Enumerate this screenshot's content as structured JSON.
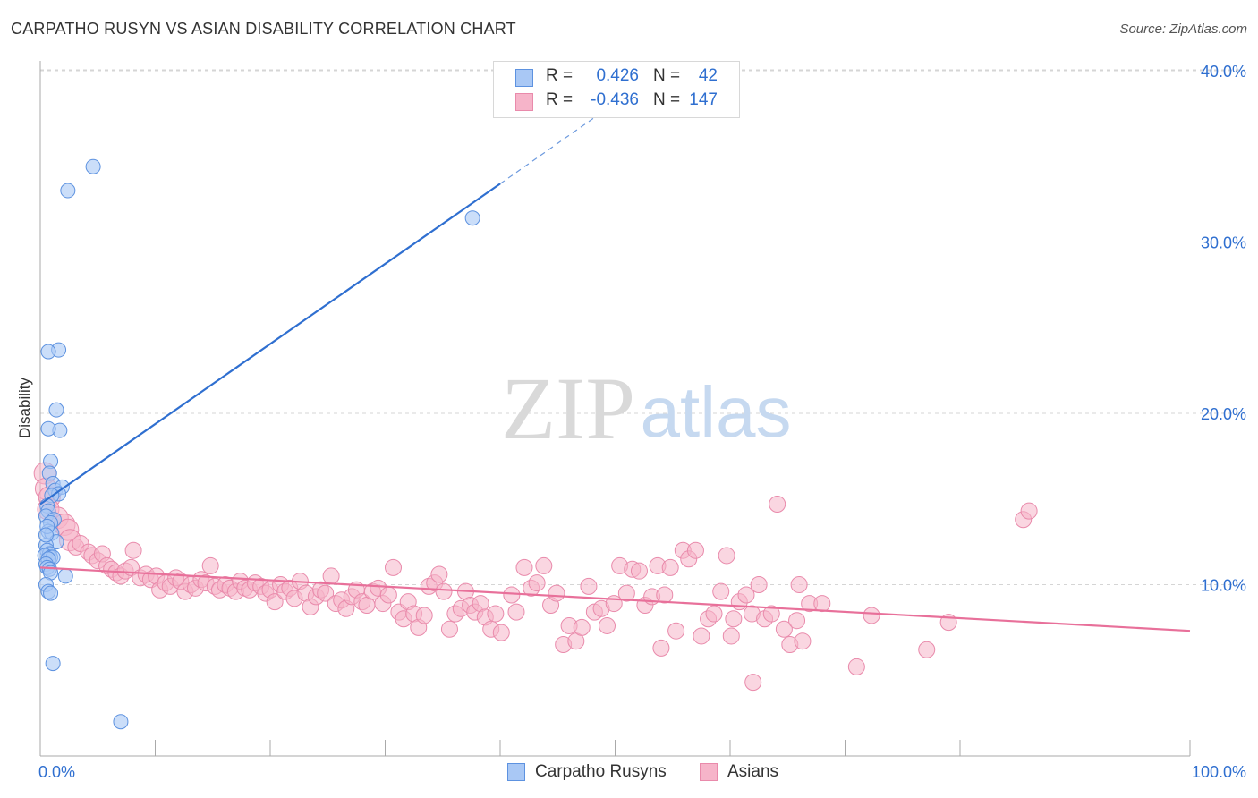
{
  "title": "CARPATHO RUSYN VS ASIAN DISABILITY CORRELATION CHART",
  "source": "Source: ZipAtlas.com",
  "watermark": {
    "zip": "ZIP",
    "atlas": "atlas"
  },
  "legend": {
    "rows": [
      {
        "r_label": "R =",
        "r_value": "0.426",
        "n_label": "N =",
        "n_value": "42"
      },
      {
        "r_label": "R =",
        "r_value": "-0.436",
        "n_label": "N =",
        "n_value": "147"
      }
    ]
  },
  "bottom_legend": {
    "series1": "Carpatho Rusyns",
    "series2": "Asians"
  },
  "colors": {
    "blue_fill": "#a9c8f5",
    "blue_stroke": "#5d92e0",
    "blue_line": "#2f6fd0",
    "pink_fill": "#f6b4c9",
    "pink_stroke": "#e98aab",
    "pink_line": "#e8709a",
    "axis_label": "#2f6fd0",
    "grid": "#d5d5d5"
  },
  "chart_data": {
    "type": "scatter",
    "title": "CARPATHO RUSYN VS ASIAN DISABILITY CORRELATION CHART",
    "xlabel": "",
    "ylabel": "Disability",
    "xlim": [
      0,
      100
    ],
    "ylim": [
      0,
      40
    ],
    "x_tick_labels": [
      "0.0%",
      "100.0%"
    ],
    "y_tick_labels": [
      "10.0%",
      "20.0%",
      "30.0%",
      "40.0%"
    ],
    "y_ticks": [
      10,
      20,
      30,
      40
    ],
    "grid": true,
    "legend_position": "top-center",
    "series": [
      {
        "name": "Carpatho Rusyns",
        "color": "#a9c8f5",
        "r": 0.426,
        "n": 42,
        "trend": {
          "x0": 0,
          "y0": 14.7,
          "x1": 40,
          "y1": 33.4,
          "dashed_to": [
            54,
            40
          ]
        },
        "points": [
          [
            4.6,
            34.4
          ],
          [
            2.4,
            33.0
          ],
          [
            37.6,
            31.4
          ],
          [
            1.6,
            23.7
          ],
          [
            0.7,
            23.6
          ],
          [
            1.4,
            20.2
          ],
          [
            1.7,
            19.0
          ],
          [
            0.7,
            19.1
          ],
          [
            0.9,
            17.2
          ],
          [
            0.8,
            16.5
          ],
          [
            1.1,
            15.9
          ],
          [
            1.3,
            15.5
          ],
          [
            1.9,
            15.7
          ],
          [
            1.6,
            15.3
          ],
          [
            1.0,
            15.2
          ],
          [
            0.6,
            14.6
          ],
          [
            0.7,
            14.3
          ],
          [
            0.5,
            14.0
          ],
          [
            1.2,
            13.8
          ],
          [
            0.9,
            13.6
          ],
          [
            0.7,
            13.1
          ],
          [
            1.0,
            13.0
          ],
          [
            1.4,
            12.5
          ],
          [
            0.5,
            12.3
          ],
          [
            0.6,
            12.0
          ],
          [
            0.8,
            11.8
          ],
          [
            0.4,
            11.7
          ],
          [
            0.9,
            11.6
          ],
          [
            1.1,
            11.6
          ],
          [
            0.7,
            11.5
          ],
          [
            0.5,
            11.2
          ],
          [
            0.6,
            11.0
          ],
          [
            0.8,
            10.9
          ],
          [
            0.9,
            10.7
          ],
          [
            2.2,
            10.5
          ],
          [
            0.5,
            10.0
          ],
          [
            0.7,
            9.6
          ],
          [
            0.9,
            9.5
          ],
          [
            1.1,
            5.4
          ],
          [
            7.0,
            2.0
          ],
          [
            0.6,
            13.4
          ],
          [
            0.5,
            12.9
          ]
        ]
      },
      {
        "name": "Asians",
        "color": "#f6b4c9",
        "r": -0.436,
        "n": 147,
        "trend": {
          "x0": 0,
          "y0": 11.0,
          "x1": 100,
          "y1": 7.3
        },
        "points": [
          [
            0.4,
            16.5
          ],
          [
            0.5,
            15.6
          ],
          [
            0.8,
            15.1
          ],
          [
            0.7,
            14.4
          ],
          [
            1.5,
            13.9
          ],
          [
            2.1,
            13.5
          ],
          [
            2.4,
            13.2
          ],
          [
            2.6,
            12.6
          ],
          [
            3.1,
            12.2
          ],
          [
            3.5,
            12.4
          ],
          [
            4.2,
            11.9
          ],
          [
            4.5,
            11.7
          ],
          [
            5.0,
            11.4
          ],
          [
            5.4,
            11.8
          ],
          [
            5.8,
            11.1
          ],
          [
            6.2,
            10.9
          ],
          [
            6.6,
            10.7
          ],
          [
            7.0,
            10.5
          ],
          [
            7.4,
            10.8
          ],
          [
            7.9,
            11.0
          ],
          [
            8.1,
            12.0
          ],
          [
            8.7,
            10.4
          ],
          [
            9.2,
            10.6
          ],
          [
            9.6,
            10.3
          ],
          [
            10.1,
            10.5
          ],
          [
            10.4,
            9.7
          ],
          [
            10.9,
            10.1
          ],
          [
            11.3,
            9.9
          ],
          [
            11.8,
            10.4
          ],
          [
            12.2,
            10.2
          ],
          [
            12.6,
            9.6
          ],
          [
            13.1,
            10.0
          ],
          [
            13.5,
            9.8
          ],
          [
            14.0,
            10.3
          ],
          [
            14.4,
            10.1
          ],
          [
            14.8,
            11.1
          ],
          [
            15.2,
            9.9
          ],
          [
            15.6,
            9.7
          ],
          [
            16.1,
            10.0
          ],
          [
            16.5,
            9.8
          ],
          [
            17.0,
            9.6
          ],
          [
            17.4,
            10.2
          ],
          [
            17.8,
            9.8
          ],
          [
            18.2,
            9.7
          ],
          [
            18.7,
            10.1
          ],
          [
            19.2,
            9.9
          ],
          [
            19.6,
            9.5
          ],
          [
            20.0,
            9.7
          ],
          [
            20.4,
            9.0
          ],
          [
            20.9,
            10.0
          ],
          [
            21.3,
            9.6
          ],
          [
            21.7,
            9.8
          ],
          [
            22.1,
            9.2
          ],
          [
            22.6,
            10.2
          ],
          [
            23.1,
            9.5
          ],
          [
            23.5,
            8.7
          ],
          [
            24.0,
            9.3
          ],
          [
            24.4,
            9.7
          ],
          [
            24.8,
            9.5
          ],
          [
            25.3,
            10.5
          ],
          [
            25.7,
            8.9
          ],
          [
            26.2,
            9.1
          ],
          [
            26.6,
            8.6
          ],
          [
            27.1,
            9.3
          ],
          [
            27.5,
            9.7
          ],
          [
            28.0,
            9.0
          ],
          [
            28.4,
            8.8
          ],
          [
            28.9,
            9.6
          ],
          [
            29.4,
            9.8
          ],
          [
            29.8,
            8.9
          ],
          [
            30.3,
            9.4
          ],
          [
            30.7,
            11.0
          ],
          [
            31.2,
            8.4
          ],
          [
            31.6,
            8.0
          ],
          [
            32.0,
            9.0
          ],
          [
            32.5,
            8.3
          ],
          [
            32.9,
            7.5
          ],
          [
            33.4,
            8.2
          ],
          [
            33.8,
            9.9
          ],
          [
            34.3,
            10.1
          ],
          [
            34.7,
            10.6
          ],
          [
            35.1,
            9.6
          ],
          [
            35.6,
            7.4
          ],
          [
            36.1,
            8.3
          ],
          [
            36.6,
            8.6
          ],
          [
            37.0,
            9.6
          ],
          [
            37.4,
            8.8
          ],
          [
            37.8,
            8.4
          ],
          [
            38.3,
            8.9
          ],
          [
            38.7,
            8.1
          ],
          [
            39.2,
            7.4
          ],
          [
            39.6,
            8.3
          ],
          [
            40.1,
            7.2
          ],
          [
            41.0,
            9.4
          ],
          [
            41.4,
            8.4
          ],
          [
            42.1,
            11.0
          ],
          [
            42.7,
            9.8
          ],
          [
            43.2,
            10.1
          ],
          [
            43.8,
            11.1
          ],
          [
            44.4,
            8.8
          ],
          [
            44.9,
            9.5
          ],
          [
            45.5,
            6.5
          ],
          [
            46.0,
            7.6
          ],
          [
            46.6,
            6.7
          ],
          [
            47.1,
            7.5
          ],
          [
            47.7,
            9.9
          ],
          [
            48.2,
            8.4
          ],
          [
            48.8,
            8.6
          ],
          [
            49.3,
            7.6
          ],
          [
            49.9,
            8.9
          ],
          [
            50.4,
            11.1
          ],
          [
            51.0,
            9.5
          ],
          [
            51.5,
            10.9
          ],
          [
            52.1,
            10.8
          ],
          [
            52.6,
            8.8
          ],
          [
            53.2,
            9.3
          ],
          [
            53.7,
            11.1
          ],
          [
            54.3,
            9.4
          ],
          [
            54.8,
            11.0
          ],
          [
            55.3,
            7.3
          ],
          [
            55.9,
            12.0
          ],
          [
            56.4,
            11.5
          ],
          [
            57.0,
            12.0
          ],
          [
            57.5,
            7.0
          ],
          [
            58.1,
            8.0
          ],
          [
            58.6,
            8.3
          ],
          [
            59.2,
            9.6
          ],
          [
            59.7,
            11.7
          ],
          [
            60.3,
            8.0
          ],
          [
            60.8,
            9.0
          ],
          [
            61.4,
            9.4
          ],
          [
            61.9,
            8.3
          ],
          [
            62.5,
            10.0
          ],
          [
            63.0,
            8.0
          ],
          [
            63.6,
            8.3
          ],
          [
            64.1,
            14.7
          ],
          [
            64.7,
            7.4
          ],
          [
            65.2,
            6.5
          ],
          [
            65.8,
            7.9
          ],
          [
            66.3,
            6.7
          ],
          [
            66.9,
            8.9
          ],
          [
            68.0,
            8.9
          ],
          [
            71.0,
            5.2
          ],
          [
            72.3,
            8.2
          ],
          [
            77.1,
            6.2
          ],
          [
            79.0,
            7.8
          ],
          [
            85.5,
            13.8
          ],
          [
            86.0,
            14.3
          ],
          [
            62.0,
            4.3
          ],
          [
            60.1,
            7.0
          ],
          [
            66.0,
            10.0
          ],
          [
            54.0,
            6.3
          ]
        ]
      }
    ]
  }
}
